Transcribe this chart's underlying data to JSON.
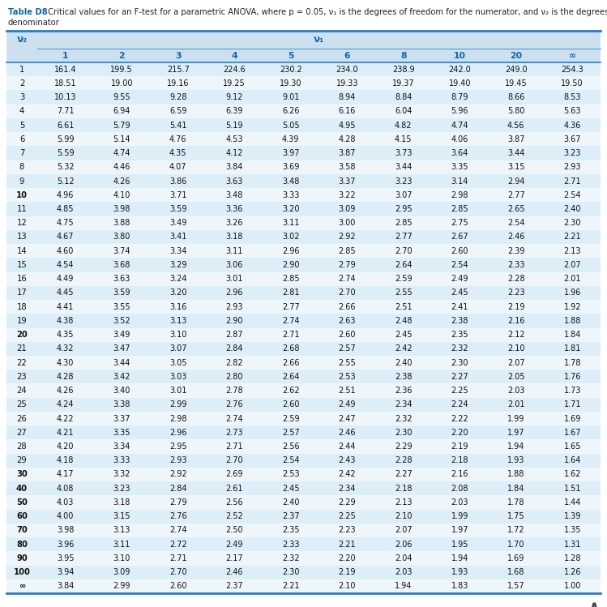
{
  "title_bold": "Table D8",
  "title_rest": " Critical values for an F-test for a parametric ANOVA, where p = 0.05, ν₁ is the degrees of freedom for the numerator, and ν₂ is the degrees of freedom for the",
  "title_line2": "denominator",
  "col_headers": [
    "1",
    "2",
    "3",
    "4",
    "5",
    "6",
    "8",
    "10",
    "20",
    "∞"
  ],
  "row_headers": [
    "1",
    "2",
    "3",
    "4",
    "5",
    "6",
    "7",
    "8",
    "9",
    "10",
    "11",
    "12",
    "13",
    "14",
    "15",
    "16",
    "17",
    "18",
    "19",
    "20",
    "21",
    "22",
    "23",
    "24",
    "25",
    "26",
    "27",
    "28",
    "29",
    "30",
    "40",
    "50",
    "60",
    "70",
    "80",
    "90",
    "100",
    "∞"
  ],
  "bold_rows": [
    "10",
    "20",
    "30",
    "40",
    "50",
    "60",
    "70",
    "80",
    "90",
    "100",
    "∞"
  ],
  "data": [
    [
      "161.4",
      "199.5",
      "215.7",
      "224.6",
      "230.2",
      "234.0",
      "238.9",
      "242.0",
      "249.0",
      "254.3"
    ],
    [
      "18.51",
      "19.00",
      "19.16",
      "19.25",
      "19.30",
      "19.33",
      "19.37",
      "19.40",
      "19.45",
      "19.50"
    ],
    [
      "10.13",
      "9.55",
      "9.28",
      "9.12",
      "9.01",
      "8.94",
      "8.84",
      "8.79",
      "8.66",
      "8.53"
    ],
    [
      "7.71",
      "6.94",
      "6.59",
      "6.39",
      "6.26",
      "6.16",
      "6.04",
      "5.96",
      "5.80",
      "5.63"
    ],
    [
      "6.61",
      "5.79",
      "5.41",
      "5.19",
      "5.05",
      "4.95",
      "4.82",
      "4.74",
      "4.56",
      "4.36"
    ],
    [
      "5.99",
      "5.14",
      "4.76",
      "4.53",
      "4.39",
      "4.28",
      "4.15",
      "4.06",
      "3.87",
      "3.67"
    ],
    [
      "5.59",
      "4.74",
      "4.35",
      "4.12",
      "3.97",
      "3.87",
      "3.73",
      "3.64",
      "3.44",
      "3.23"
    ],
    [
      "5.32",
      "4.46",
      "4.07",
      "3.84",
      "3.69",
      "3.58",
      "3.44",
      "3.35",
      "3.15",
      "2.93"
    ],
    [
      "5.12",
      "4.26",
      "3.86",
      "3.63",
      "3.48",
      "3.37",
      "3.23",
      "3.14",
      "2.94",
      "2.71"
    ],
    [
      "4.96",
      "4.10",
      "3.71",
      "3.48",
      "3.33",
      "3.22",
      "3.07",
      "2.98",
      "2.77",
      "2.54"
    ],
    [
      "4.85",
      "3.98",
      "3.59",
      "3.36",
      "3.20",
      "3.09",
      "2.95",
      "2.85",
      "2.65",
      "2.40"
    ],
    [
      "4.75",
      "3.88",
      "3.49",
      "3.26",
      "3.11",
      "3.00",
      "2.85",
      "2.75",
      "2.54",
      "2.30"
    ],
    [
      "4.67",
      "3.80",
      "3.41",
      "3.18",
      "3.02",
      "2.92",
      "2.77",
      "2.67",
      "2.46",
      "2.21"
    ],
    [
      "4.60",
      "3.74",
      "3.34",
      "3.11",
      "2.96",
      "2.85",
      "2.70",
      "2.60",
      "2.39",
      "2.13"
    ],
    [
      "4.54",
      "3.68",
      "3.29",
      "3.06",
      "2.90",
      "2.79",
      "2.64",
      "2.54",
      "2.33",
      "2.07"
    ],
    [
      "4.49",
      "3.63",
      "3.24",
      "3.01",
      "2.85",
      "2.74",
      "2.59",
      "2.49",
      "2.28",
      "2.01"
    ],
    [
      "4.45",
      "3.59",
      "3.20",
      "2.96",
      "2.81",
      "2.70",
      "2.55",
      "2.45",
      "2.23",
      "1.96"
    ],
    [
      "4.41",
      "3.55",
      "3.16",
      "2.93",
      "2.77",
      "2.66",
      "2.51",
      "2.41",
      "2.19",
      "1.92"
    ],
    [
      "4.38",
      "3.52",
      "3.13",
      "2.90",
      "2.74",
      "2.63",
      "2.48",
      "2.38",
      "2.16",
      "1.88"
    ],
    [
      "4.35",
      "3.49",
      "3.10",
      "2.87",
      "2.71",
      "2.60",
      "2.45",
      "2.35",
      "2.12",
      "1.84"
    ],
    [
      "4.32",
      "3.47",
      "3.07",
      "2.84",
      "2.68",
      "2.57",
      "2.42",
      "2.32",
      "2.10",
      "1.81"
    ],
    [
      "4.30",
      "3.44",
      "3.05",
      "2.82",
      "2.66",
      "2.55",
      "2.40",
      "2.30",
      "2.07",
      "1.78"
    ],
    [
      "4.28",
      "3.42",
      "3.03",
      "2.80",
      "2.64",
      "2.53",
      "2.38",
      "2.27",
      "2.05",
      "1.76"
    ],
    [
      "4.26",
      "3.40",
      "3.01",
      "2.78",
      "2.62",
      "2.51",
      "2.36",
      "2.25",
      "2.03",
      "1.73"
    ],
    [
      "4.24",
      "3.38",
      "2.99",
      "2.76",
      "2.60",
      "2.49",
      "2.34",
      "2.24",
      "2.01",
      "1.71"
    ],
    [
      "4.22",
      "3.37",
      "2.98",
      "2.74",
      "2.59",
      "2.47",
      "2.32",
      "2.22",
      "1.99",
      "1.69"
    ],
    [
      "4.21",
      "3.35",
      "2.96",
      "2.73",
      "2.57",
      "2.46",
      "2.30",
      "2.20",
      "1.97",
      "1.67"
    ],
    [
      "4.20",
      "3.34",
      "2.95",
      "2.71",
      "2.56",
      "2.44",
      "2.29",
      "2.19",
      "1.94",
      "1.65"
    ],
    [
      "4.18",
      "3.33",
      "2.93",
      "2.70",
      "2.54",
      "2.43",
      "2.28",
      "2.18",
      "1.93",
      "1.64"
    ],
    [
      "4.17",
      "3.32",
      "2.92",
      "2.69",
      "2.53",
      "2.42",
      "2.27",
      "2.16",
      "1.88",
      "1.62"
    ],
    [
      "4.08",
      "3.23",
      "2.84",
      "2.61",
      "2.45",
      "2.34",
      "2.18",
      "2.08",
      "1.84",
      "1.51"
    ],
    [
      "4.03",
      "3.18",
      "2.79",
      "2.56",
      "2.40",
      "2.29",
      "2.13",
      "2.03",
      "1.78",
      "1.44"
    ],
    [
      "4.00",
      "3.15",
      "2.76",
      "2.52",
      "2.37",
      "2.25",
      "2.10",
      "1.99",
      "1.75",
      "1.39"
    ],
    [
      "3.98",
      "3.13",
      "2.74",
      "2.50",
      "2.35",
      "2.23",
      "2.07",
      "1.97",
      "1.72",
      "1.35"
    ],
    [
      "3.96",
      "3.11",
      "2.72",
      "2.49",
      "2.33",
      "2.21",
      "2.06",
      "1.95",
      "1.70",
      "1.31"
    ],
    [
      "3.95",
      "3.10",
      "2.71",
      "2.17",
      "2.32",
      "2.20",
      "2.04",
      "1.94",
      "1.69",
      "1.28"
    ],
    [
      "3.94",
      "3.09",
      "2.70",
      "2.46",
      "2.30",
      "2.19",
      "2.03",
      "1.93",
      "1.68",
      "1.26"
    ],
    [
      "3.84",
      "2.99",
      "2.60",
      "2.37",
      "2.21",
      "2.10",
      "1.94",
      "1.83",
      "1.57",
      "1.00"
    ]
  ],
  "header_bg": "#cce0f0",
  "row_bg_light": "#ddeef8",
  "row_bg_white": "#eef6fc",
  "header_color": "#1565a8",
  "text_color": "#111111",
  "title_bold_color": "#1565a8",
  "title_text_color": "#222222",
  "border_color_thick": "#2e7bbf",
  "border_color_thin": "#5599cc",
  "background_color": "#ffffff",
  "caret_color": "#444444"
}
